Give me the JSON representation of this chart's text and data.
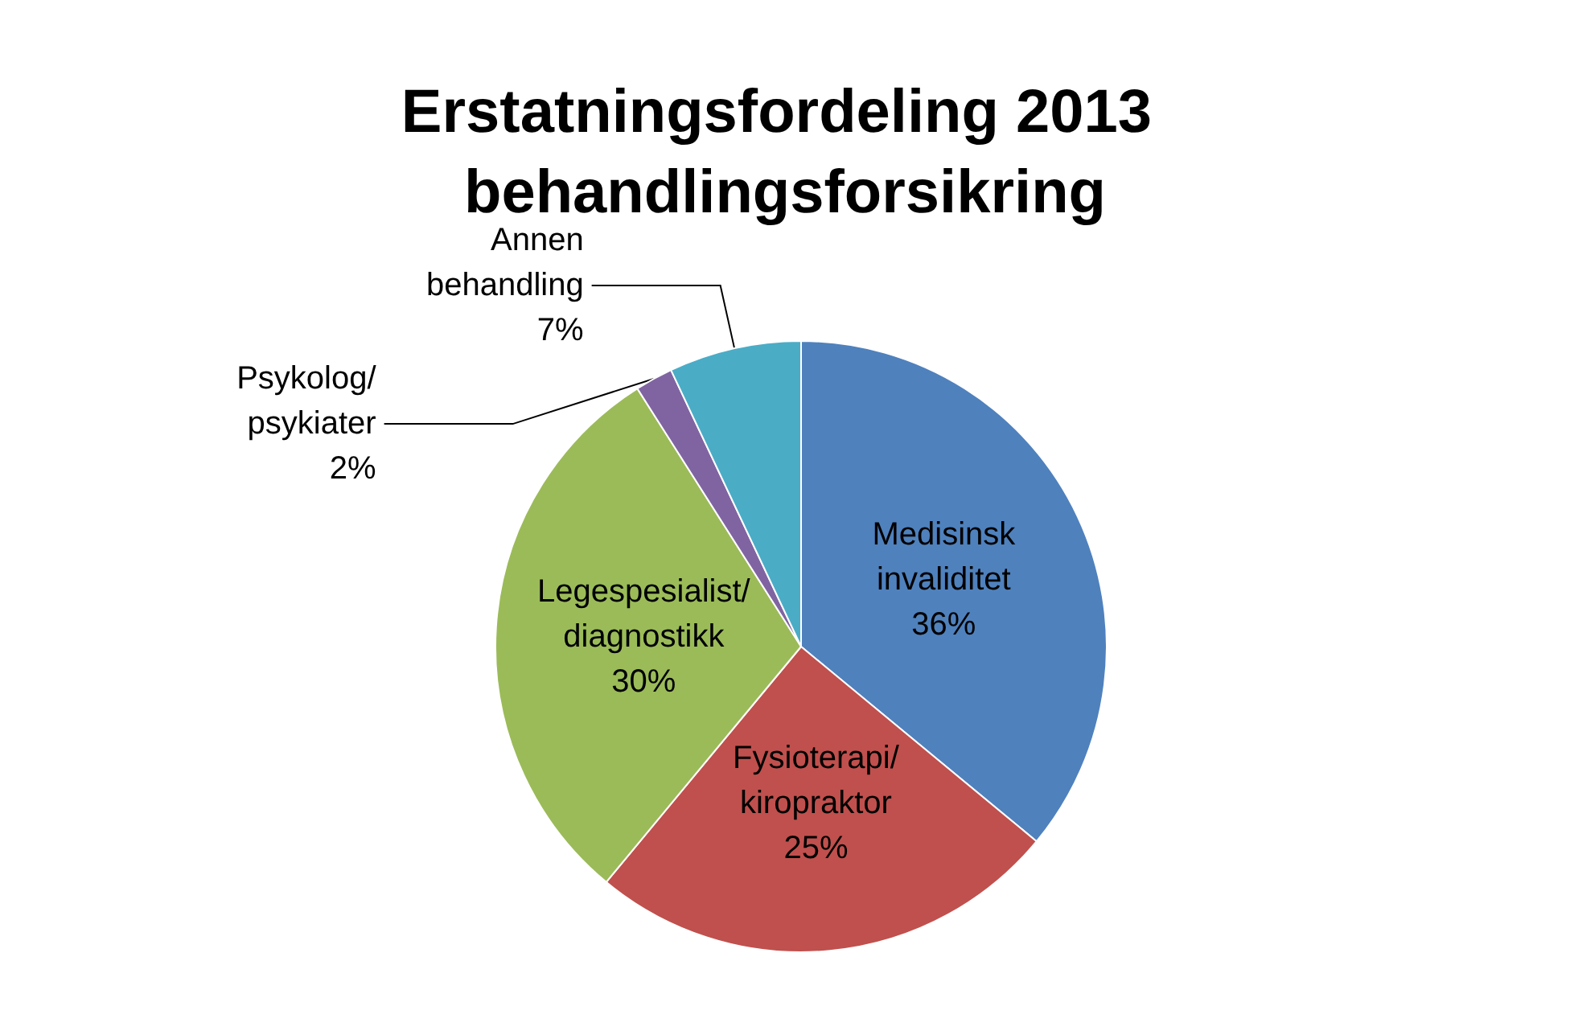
{
  "chart_data": {
    "type": "pie",
    "title": "Erstatningsfordeling 2013 behandlingsforsikring",
    "categories": [
      "Medisinsk invaliditet",
      "Fysioterapi/kiropraktor",
      "Legespesialist/diagnostikk",
      "Psykolog/psykiater",
      "Annen behandling"
    ],
    "values": [
      36,
      25,
      30,
      2,
      7
    ],
    "colors": [
      "#4f81bd",
      "#c0504d",
      "#9bbb59",
      "#8064a2",
      "#4bacc6"
    ],
    "value_labels": [
      "36%",
      "25%",
      "30%",
      "2%",
      "7%"
    ],
    "legend": false
  }
}
